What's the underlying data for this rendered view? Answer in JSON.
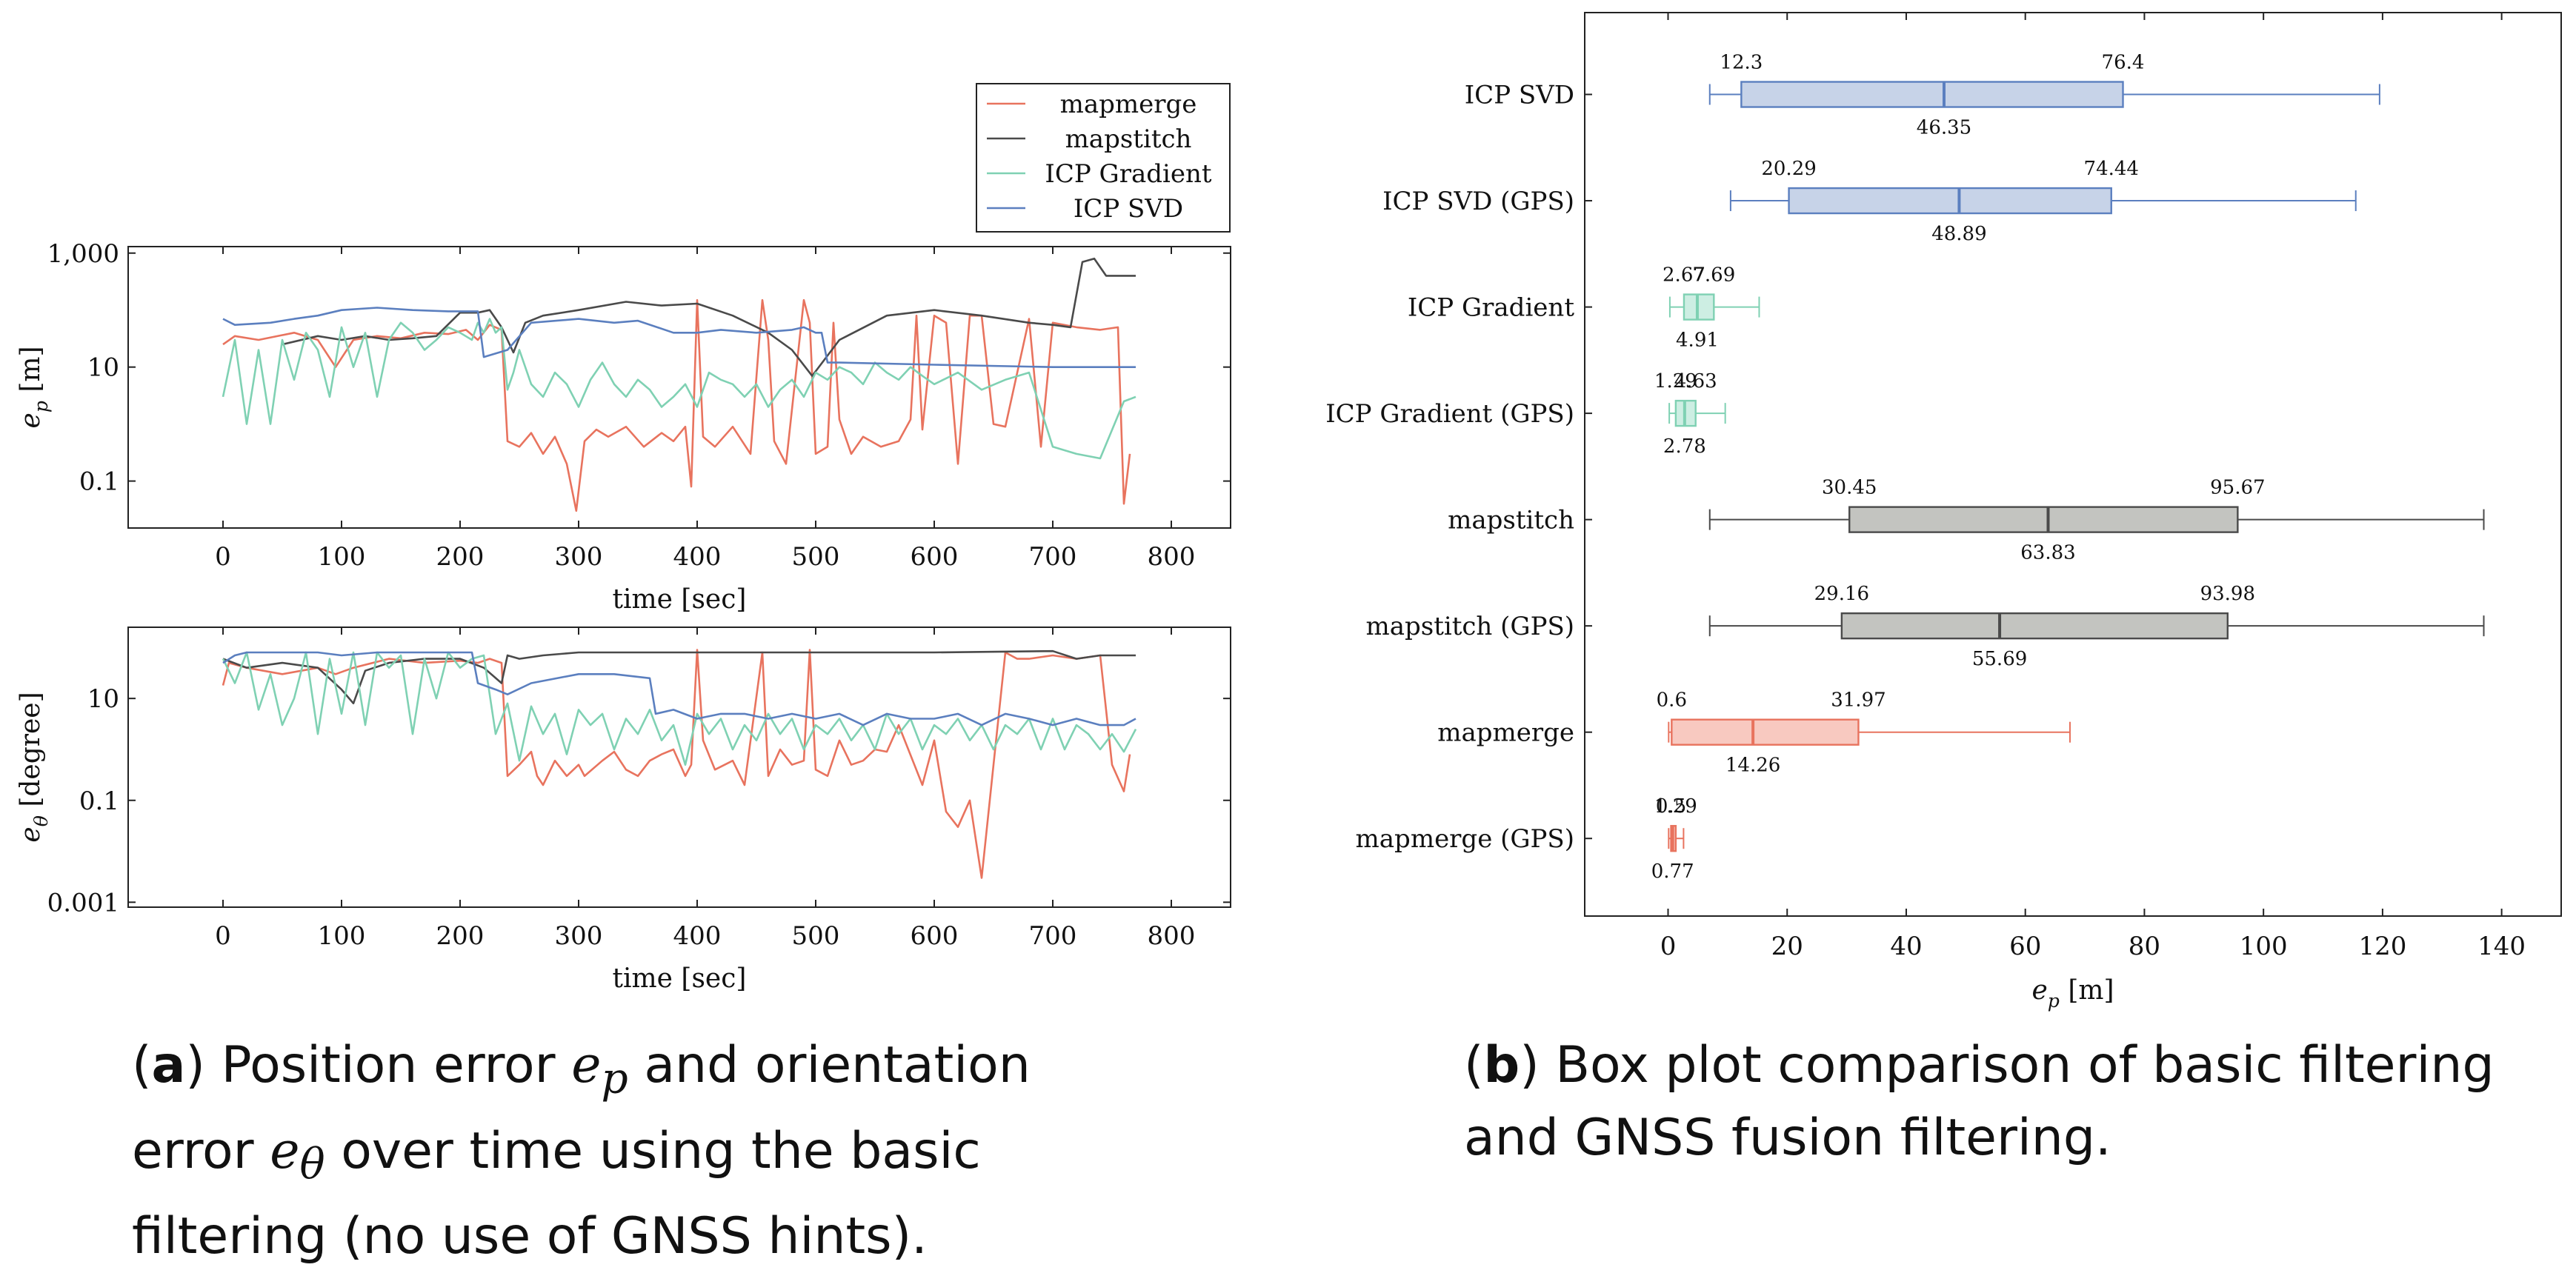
{
  "colors": {
    "mapmerge": "#e8735e",
    "mapstitch": "#4a4a4a",
    "icp_gradient": "#7fd1b3",
    "icp_svd": "#5b7fbf",
    "mapmerge_fill": "#f8c9c0",
    "mapstitch_fill": "#c3c4c0",
    "icp_gradient_fill": "#cdeee3",
    "icp_svd_fill": "#c7d3e8"
  },
  "captions": {
    "a": {
      "tag": "a",
      "text_before": " Position error ",
      "var1": "e",
      "sub1": "p",
      "text_mid": " and orientation error ",
      "var2": "e",
      "sub2": "θ",
      "text_after": " over time using the basic filtering (no use of GNSS hints)."
    },
    "b": {
      "tag": "b",
      "text": " Box plot comparison of basic filtering and GNSS fusion filtering."
    }
  },
  "chart_data": [
    {
      "id": "position",
      "type": "line",
      "xlabel": "time [sec]",
      "ylabel_var": "e",
      "ylabel_sub": "p",
      "ylabel_unit": "[m]",
      "xlim": [
        -80,
        850
      ],
      "ylim": [
        0.015,
        1300
      ],
      "yscale": "log",
      "xticks": [
        0,
        100,
        200,
        300,
        400,
        500,
        600,
        700,
        800
      ],
      "yticks": [
        0.1,
        10,
        1000
      ],
      "ytick_labels": [
        "0.1",
        "10",
        "1,000"
      ],
      "legend": [
        "mapmerge",
        "mapstitch",
        "ICP Gradient",
        "ICP SVD"
      ],
      "legend_position": "above-right",
      "series": [
        {
          "name": "mapmerge",
          "color_key": "mapmerge",
          "x": [
            0,
            10,
            30,
            60,
            80,
            95,
            110,
            130,
            150,
            170,
            190,
            205,
            215,
            225,
            235,
            240,
            250,
            260,
            270,
            280,
            290,
            298,
            305,
            315,
            325,
            340,
            355,
            370,
            380,
            390,
            395,
            400,
            405,
            415,
            430,
            445,
            455,
            460,
            465,
            475,
            490,
            495,
            500,
            510,
            515,
            520,
            530,
            540,
            555,
            570,
            580,
            585,
            590,
            600,
            610,
            620,
            630,
            640,
            650,
            660,
            680,
            690,
            700,
            720,
            740,
            755,
            760,
            765
          ],
          "y": [
            25,
            35,
            30,
            40,
            30,
            10,
            30,
            35,
            32,
            40,
            38,
            45,
            30,
            55,
            45,
            0.5,
            0.4,
            0.7,
            0.3,
            0.6,
            0.2,
            0.03,
            0.5,
            0.8,
            0.6,
            0.9,
            0.4,
            0.7,
            0.5,
            0.9,
            0.08,
            150,
            0.6,
            0.4,
            0.9,
            0.3,
            150,
            30,
            0.5,
            0.2,
            150,
            60,
            0.3,
            0.4,
            60,
            1.2,
            0.3,
            0.6,
            0.4,
            0.5,
            1.2,
            80,
            0.8,
            80,
            60,
            0.2,
            80,
            80,
            1.0,
            0.9,
            70,
            0.4,
            60,
            50,
            45,
            50,
            0.04,
            0.3
          ]
        },
        {
          "name": "mapstitch",
          "color_key": "mapstitch",
          "x": [
            50,
            80,
            100,
            120,
            140,
            160,
            180,
            200,
            215,
            225,
            235,
            245,
            255,
            270,
            300,
            340,
            370,
            400,
            430,
            460,
            480,
            497,
            520,
            560,
            600,
            640,
            680,
            700,
            715,
            725,
            735,
            745,
            770
          ],
          "y": [
            25,
            35,
            30,
            35,
            30,
            32,
            35,
            90,
            90,
            100,
            50,
            18,
            60,
            80,
            100,
            140,
            120,
            130,
            80,
            40,
            20,
            7,
            30,
            80,
            100,
            80,
            60,
            55,
            50,
            700,
            800,
            400,
            400
          ]
        },
        {
          "name": "ICP Gradient",
          "color_key": "icp_gradient",
          "x": [
            0,
            10,
            20,
            30,
            40,
            50,
            60,
            70,
            80,
            90,
            100,
            110,
            120,
            130,
            140,
            150,
            160,
            170,
            180,
            190,
            200,
            210,
            215,
            220,
            225,
            230,
            235,
            240,
            245,
            250,
            260,
            270,
            280,
            290,
            300,
            310,
            320,
            330,
            340,
            350,
            360,
            370,
            380,
            390,
            400,
            410,
            420,
            430,
            440,
            450,
            460,
            470,
            480,
            490,
            500,
            510,
            520,
            530,
            540,
            550,
            560,
            570,
            580,
            590,
            600,
            620,
            640,
            660,
            680,
            700,
            720,
            740,
            760,
            770
          ],
          "y": [
            3,
            30,
            1,
            20,
            1,
            30,
            6,
            40,
            20,
            3,
            50,
            10,
            40,
            3,
            30,
            60,
            40,
            20,
            30,
            50,
            40,
            30,
            60,
            40,
            70,
            40,
            50,
            4,
            8,
            20,
            5,
            3,
            8,
            5,
            2,
            6,
            12,
            5,
            3,
            6,
            4,
            2,
            3,
            5,
            2,
            8,
            6,
            5,
            3,
            5,
            2,
            4,
            6,
            3,
            8,
            6,
            10,
            8,
            5,
            12,
            8,
            6,
            10,
            7,
            5,
            8,
            4,
            6,
            8,
            0.4,
            0.3,
            0.25,
            2.5,
            3
          ]
        },
        {
          "name": "ICP SVD",
          "color_key": "icp_svd",
          "x": [
            0,
            10,
            40,
            60,
            80,
            100,
            130,
            160,
            190,
            215,
            220,
            240,
            260,
            300,
            330,
            350,
            380,
            400,
            420,
            450,
            480,
            490,
            500,
            505,
            510,
            520,
            600,
            700,
            770
          ],
          "y": [
            70,
            55,
            60,
            70,
            80,
            100,
            110,
            100,
            95,
            95,
            15,
            20,
            60,
            70,
            60,
            65,
            40,
            40,
            45,
            40,
            45,
            50,
            40,
            40,
            12,
            12,
            11,
            10,
            10
          ]
        }
      ]
    },
    {
      "id": "orientation",
      "type": "line",
      "xlabel": "time [sec]",
      "ylabel_var": "e",
      "ylabel_sub": "θ",
      "ylabel_unit": "[degree]",
      "xlim": [
        -80,
        850
      ],
      "ylim": [
        0.0008,
        250
      ],
      "yscale": "log",
      "xticks": [
        0,
        100,
        200,
        300,
        400,
        500,
        600,
        700,
        800
      ],
      "yticks": [
        0.001,
        0.1,
        10
      ],
      "ytick_labels": [
        "0.001",
        "0.1",
        "10"
      ],
      "series": [
        {
          "name": "mapmerge",
          "color_key": "mapmerge",
          "x": [
            0,
            5,
            20,
            50,
            80,
            95,
            110,
            140,
            170,
            200,
            215,
            225,
            235,
            240,
            250,
            260,
            265,
            270,
            280,
            290,
            300,
            305,
            320,
            330,
            340,
            350,
            360,
            370,
            380,
            390,
            395,
            400,
            405,
            415,
            430,
            440,
            455,
            460,
            470,
            480,
            490,
            495,
            500,
            510,
            520,
            530,
            540,
            550,
            560,
            570,
            590,
            600,
            610,
            620,
            630,
            640,
            650,
            660,
            670,
            680,
            700,
            720,
            740,
            750,
            760,
            765
          ],
          "y": [
            18,
            50,
            40,
            30,
            40,
            30,
            40,
            60,
            50,
            55,
            50,
            60,
            50,
            0.3,
            0.5,
            0.9,
            0.3,
            0.2,
            0.6,
            0.3,
            0.5,
            0.3,
            0.6,
            0.9,
            0.4,
            0.3,
            0.6,
            0.8,
            1.0,
            0.3,
            0.5,
            90,
            1.5,
            0.4,
            0.6,
            0.2,
            80,
            0.3,
            1.0,
            0.5,
            0.6,
            90,
            0.4,
            0.3,
            1.5,
            0.5,
            0.6,
            1.0,
            0.9,
            3,
            0.2,
            1.5,
            0.06,
            0.03,
            0.1,
            0.003,
            0.5,
            80,
            60,
            60,
            70,
            60,
            70,
            0.5,
            0.15,
            0.8
          ]
        },
        {
          "name": "mapstitch",
          "color_key": "mapstitch",
          "x": [
            0,
            20,
            50,
            80,
            100,
            110,
            120,
            140,
            170,
            200,
            220,
            235,
            240,
            250,
            270,
            300,
            400,
            500,
            600,
            700,
            720,
            740,
            770
          ],
          "y": [
            60,
            40,
            50,
            40,
            15,
            8,
            35,
            50,
            60,
            60,
            40,
            20,
            70,
            60,
            70,
            80,
            80,
            80,
            80,
            85,
            60,
            70,
            70
          ]
        },
        {
          "name": "ICP Gradient",
          "color_key": "icp_gradient",
          "x": [
            0,
            10,
            20,
            30,
            40,
            50,
            60,
            70,
            80,
            90,
            100,
            110,
            120,
            130,
            140,
            150,
            160,
            170,
            180,
            190,
            200,
            210,
            220,
            230,
            240,
            250,
            260,
            270,
            280,
            290,
            300,
            310,
            320,
            330,
            340,
            350,
            360,
            370,
            380,
            390,
            400,
            410,
            420,
            430,
            440,
            450,
            460,
            470,
            480,
            490,
            500,
            510,
            520,
            530,
            540,
            550,
            560,
            570,
            580,
            590,
            600,
            610,
            620,
            630,
            640,
            650,
            660,
            670,
            680,
            690,
            700,
            710,
            720,
            730,
            740,
            750,
            760,
            770
          ],
          "y": [
            60,
            20,
            80,
            6,
            30,
            3,
            10,
            80,
            2,
            60,
            5,
            80,
            3,
            80,
            40,
            70,
            2,
            60,
            10,
            80,
            40,
            60,
            70,
            2,
            8,
            0.6,
            7,
            2,
            5,
            0.8,
            6,
            3,
            5,
            1,
            4,
            2,
            6,
            1.5,
            3,
            0.5,
            5,
            2,
            4,
            1,
            3,
            1.5,
            5,
            2,
            4,
            1,
            3,
            2,
            4,
            1.5,
            3,
            1,
            5,
            2,
            4,
            1,
            3,
            2,
            4,
            1.5,
            3,
            1,
            3,
            2,
            4,
            1,
            4,
            1,
            3,
            2,
            1,
            2,
            0.9,
            2.5
          ]
        },
        {
          "name": "ICP SVD",
          "color_key": "icp_svd",
          "x": [
            0,
            10,
            20,
            50,
            80,
            100,
            130,
            160,
            190,
            210,
            215,
            230,
            240,
            260,
            300,
            330,
            360,
            365,
            380,
            400,
            420,
            440,
            460,
            480,
            500,
            520,
            540,
            560,
            580,
            600,
            620,
            640,
            660,
            680,
            700,
            720,
            740,
            760,
            770
          ],
          "y": [
            50,
            70,
            80,
            80,
            80,
            70,
            80,
            80,
            80,
            80,
            20,
            15,
            12,
            20,
            30,
            30,
            25,
            5,
            6,
            4,
            5,
            5,
            4,
            5,
            4,
            5,
            3,
            5,
            4,
            4,
            5,
            3,
            5,
            4,
            3,
            4,
            3,
            3,
            4
          ]
        }
      ]
    },
    {
      "id": "boxplot",
      "type": "box",
      "xlabel_var": "e",
      "xlabel_sub": "p",
      "xlabel_unit": "[m]",
      "xlim": [
        -14,
        150
      ],
      "xticks": [
        0,
        20,
        40,
        60,
        80,
        100,
        120,
        140
      ],
      "boxes": [
        {
          "name": "ICP SVD",
          "color_key": "icp_svd",
          "fill_key": "icp_svd_fill",
          "whisker_low": 7,
          "q1": 12.3,
          "median": 46.35,
          "q3": 76.4,
          "whisker_high": 119.5,
          "q1_label": "12.3",
          "median_label": "46.35",
          "q3_label": "76.4"
        },
        {
          "name": "ICP SVD (GPS)",
          "color_key": "icp_svd",
          "fill_key": "icp_svd_fill",
          "whisker_low": 10.5,
          "q1": 20.29,
          "median": 48.89,
          "q3": 74.44,
          "whisker_high": 115.5,
          "q1_label": "20.29",
          "median_label": "48.89",
          "q3_label": "74.44"
        },
        {
          "name": "ICP Gradient",
          "color_key": "icp_gradient",
          "fill_key": "icp_gradient_fill",
          "whisker_low": 0.3,
          "q1": 2.67,
          "median": 4.91,
          "q3": 7.69,
          "whisker_high": 15.3,
          "q1_label": "2.67",
          "median_label": "4.91",
          "q3_label": "7.69"
        },
        {
          "name": "ICP Gradient (GPS)",
          "color_key": "icp_gradient",
          "fill_key": "icp_gradient_fill",
          "whisker_low": 0.2,
          "q1": 1.29,
          "median": 2.78,
          "q3": 4.63,
          "whisker_high": 9.6,
          "q1_label": "1.29",
          "median_label": "2.78",
          "q3_label": "4.63"
        },
        {
          "name": "mapstitch",
          "color_key": "mapstitch",
          "fill_key": "mapstitch_fill",
          "whisker_low": 7,
          "q1": 30.45,
          "median": 63.83,
          "q3": 95.67,
          "whisker_high": 137,
          "q1_label": "30.45",
          "median_label": "63.83",
          "q3_label": "95.67"
        },
        {
          "name": "mapstitch (GPS)",
          "color_key": "mapstitch",
          "fill_key": "mapstitch_fill",
          "whisker_low": 7,
          "q1": 29.16,
          "median": 55.69,
          "q3": 93.98,
          "whisker_high": 137,
          "q1_label": "29.16",
          "median_label": "55.69",
          "q3_label": "93.98"
        },
        {
          "name": "mapmerge",
          "color_key": "mapmerge",
          "fill_key": "mapmerge_fill",
          "whisker_low": 0.1,
          "q1": 0.6,
          "median": 14.26,
          "q3": 31.97,
          "whisker_high": 67.5,
          "q1_label": "0.6",
          "median_label": "14.26",
          "q3_label": "31.97"
        },
        {
          "name": "mapmerge (GPS)",
          "color_key": "mapmerge",
          "fill_key": "mapmerge_fill",
          "whisker_low": 0.1,
          "q1": 0.5,
          "median": 0.77,
          "q3": 1.29,
          "whisker_high": 2.6,
          "q1_label": "0.5",
          "median_label": "0.77",
          "q3_label": "1.29"
        }
      ]
    }
  ]
}
